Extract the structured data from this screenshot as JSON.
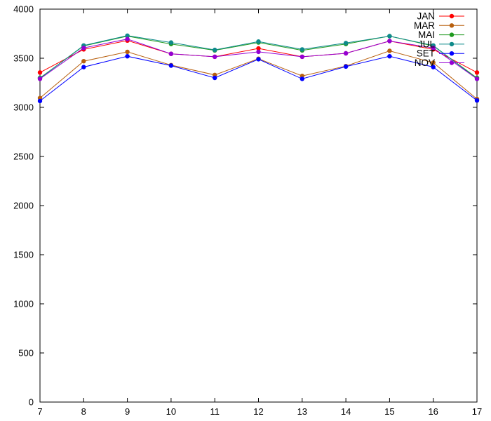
{
  "chart_data": {
    "type": "line",
    "title": "",
    "xlabel": "",
    "ylabel": "",
    "x": [
      7,
      8,
      9,
      10,
      11,
      12,
      13,
      14,
      15,
      16,
      17
    ],
    "xlim": [
      7,
      17
    ],
    "ylim": [
      0,
      4000
    ],
    "xticks": [
      "7",
      "8",
      "9",
      "10",
      "11",
      "12",
      "13",
      "14",
      "15",
      "16",
      "17"
    ],
    "yticks": [
      "0",
      "500",
      "1000",
      "1500",
      "2000",
      "2500",
      "3000",
      "3500",
      "4000"
    ],
    "grid": false,
    "legend_position": "top-right",
    "series": [
      {
        "name": "JAN",
        "color": "#ff0000",
        "values": [
          3355,
          3590,
          3680,
          3545,
          3515,
          3600,
          3515,
          3550,
          3675,
          3590,
          3355
        ]
      },
      {
        "name": "MAR",
        "color": "#b8600f",
        "values": [
          3095,
          3470,
          3565,
          3430,
          3330,
          3495,
          3320,
          3420,
          3575,
          3455,
          3085
        ]
      },
      {
        "name": "MAI",
        "color": "#1f9a1f",
        "values": [
          3300,
          3625,
          3725,
          3645,
          3580,
          3660,
          3580,
          3645,
          3725,
          3625,
          3300
        ]
      },
      {
        "name": "JUL",
        "color": "#0e8a8a",
        "values": [
          3295,
          3630,
          3730,
          3660,
          3585,
          3670,
          3590,
          3655,
          3725,
          3630,
          3290
        ]
      },
      {
        "name": "SET",
        "color": "#0000ff",
        "values": [
          3065,
          3410,
          3520,
          3425,
          3300,
          3490,
          3290,
          3415,
          3520,
          3410,
          3070
        ]
      },
      {
        "name": "NOV",
        "color": "#9400d3",
        "values": [
          3290,
          3605,
          3695,
          3545,
          3515,
          3565,
          3515,
          3550,
          3675,
          3605,
          3290
        ]
      }
    ]
  }
}
